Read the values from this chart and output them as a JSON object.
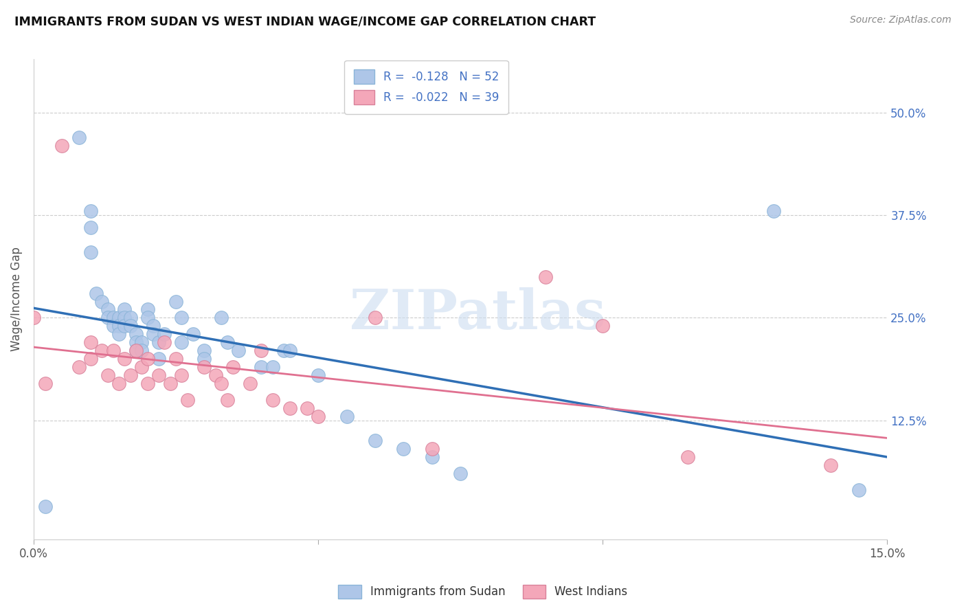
{
  "title": "IMMIGRANTS FROM SUDAN VS WEST INDIAN WAGE/INCOME GAP CORRELATION CHART",
  "source": "Source: ZipAtlas.com",
  "ylabel": "Wage/Income Gap",
  "ytick_labels": [
    "50.0%",
    "37.5%",
    "25.0%",
    "12.5%"
  ],
  "ytick_values": [
    0.5,
    0.375,
    0.25,
    0.125
  ],
  "xmin": 0.0,
  "xmax": 0.15,
  "ymin": -0.02,
  "ymax": 0.565,
  "color_blue": "#aec6e8",
  "color_pink": "#f4a7b9",
  "line_color_blue": "#2f6fb5",
  "line_color_pink": "#e07090",
  "watermark": "ZIPatlas",
  "sudan_x": [
    0.002,
    0.008,
    0.01,
    0.01,
    0.01,
    0.011,
    0.012,
    0.013,
    0.013,
    0.014,
    0.014,
    0.015,
    0.015,
    0.015,
    0.016,
    0.016,
    0.016,
    0.017,
    0.017,
    0.018,
    0.018,
    0.018,
    0.019,
    0.019,
    0.02,
    0.02,
    0.021,
    0.021,
    0.022,
    0.022,
    0.023,
    0.025,
    0.026,
    0.026,
    0.028,
    0.03,
    0.03,
    0.033,
    0.034,
    0.036,
    0.04,
    0.042,
    0.044,
    0.045,
    0.05,
    0.055,
    0.06,
    0.065,
    0.07,
    0.075,
    0.13,
    0.145
  ],
  "sudan_y": [
    0.02,
    0.47,
    0.38,
    0.36,
    0.33,
    0.28,
    0.27,
    0.26,
    0.25,
    0.25,
    0.24,
    0.25,
    0.24,
    0.23,
    0.26,
    0.25,
    0.24,
    0.25,
    0.24,
    0.23,
    0.22,
    0.21,
    0.22,
    0.21,
    0.26,
    0.25,
    0.24,
    0.23,
    0.22,
    0.2,
    0.23,
    0.27,
    0.25,
    0.22,
    0.23,
    0.21,
    0.2,
    0.25,
    0.22,
    0.21,
    0.19,
    0.19,
    0.21,
    0.21,
    0.18,
    0.13,
    0.1,
    0.09,
    0.08,
    0.06,
    0.38,
    0.04
  ],
  "westindian_x": [
    0.0,
    0.002,
    0.005,
    0.008,
    0.01,
    0.01,
    0.012,
    0.013,
    0.014,
    0.015,
    0.016,
    0.017,
    0.018,
    0.019,
    0.02,
    0.02,
    0.022,
    0.023,
    0.024,
    0.025,
    0.026,
    0.027,
    0.03,
    0.032,
    0.033,
    0.034,
    0.035,
    0.038,
    0.04,
    0.042,
    0.045,
    0.048,
    0.05,
    0.06,
    0.07,
    0.09,
    0.1,
    0.115,
    0.14
  ],
  "westindian_y": [
    0.25,
    0.17,
    0.46,
    0.19,
    0.22,
    0.2,
    0.21,
    0.18,
    0.21,
    0.17,
    0.2,
    0.18,
    0.21,
    0.19,
    0.2,
    0.17,
    0.18,
    0.22,
    0.17,
    0.2,
    0.18,
    0.15,
    0.19,
    0.18,
    0.17,
    0.15,
    0.19,
    0.17,
    0.21,
    0.15,
    0.14,
    0.14,
    0.13,
    0.25,
    0.09,
    0.3,
    0.24,
    0.08,
    0.07
  ]
}
